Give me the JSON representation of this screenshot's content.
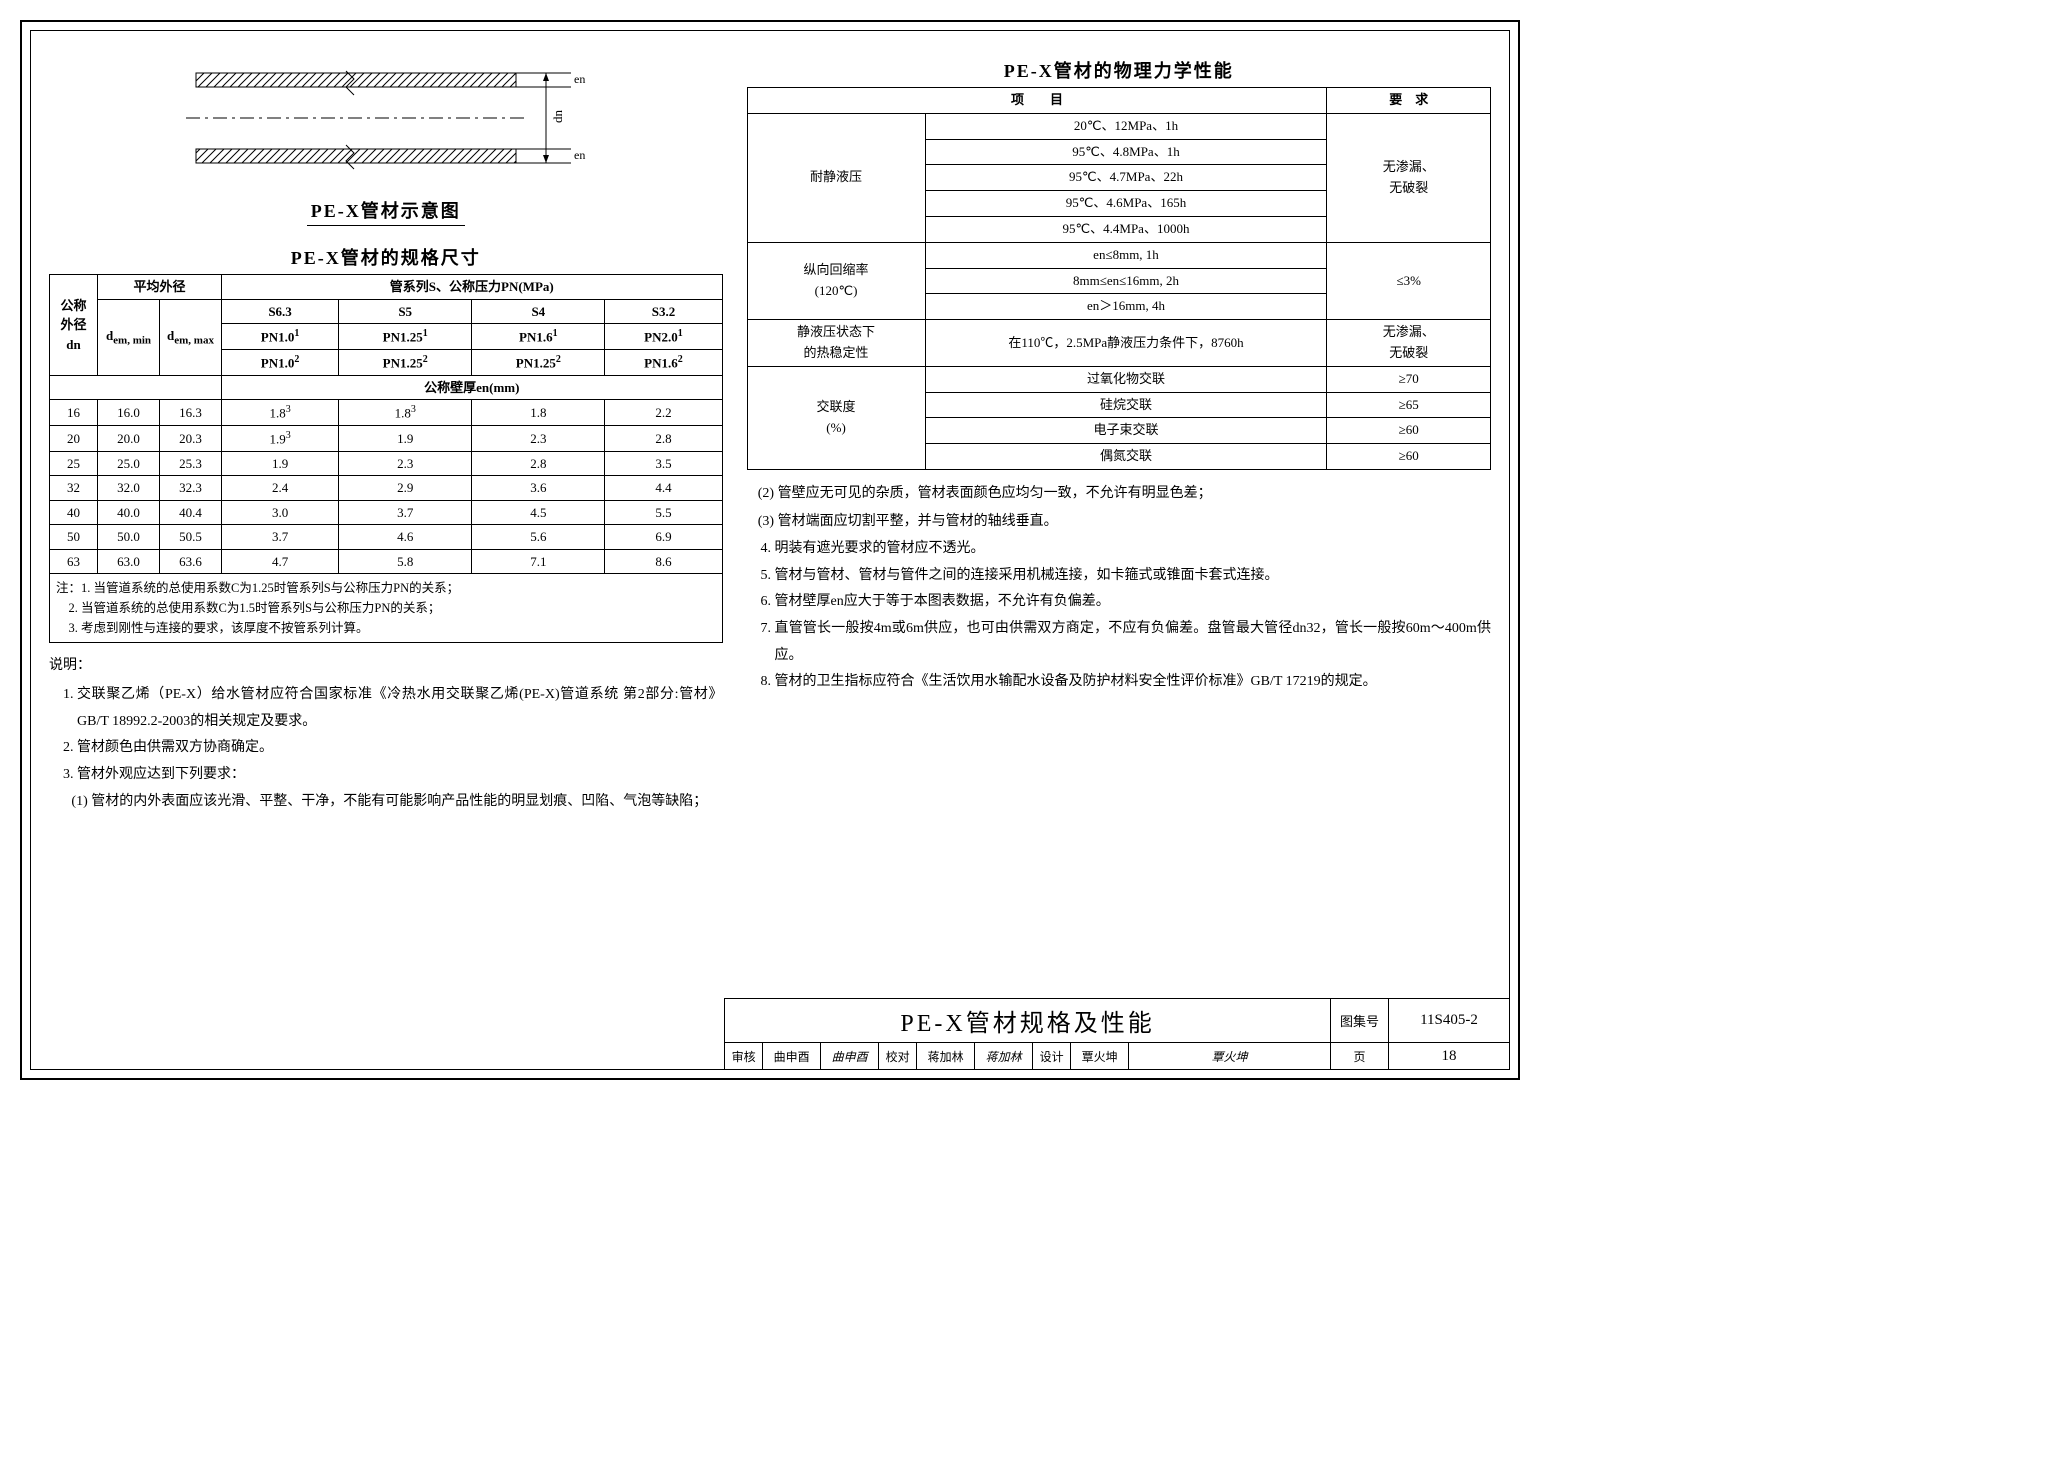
{
  "diagram": {
    "caption": "PE-X管材示意图",
    "dn_label": "dn",
    "en_label": "en"
  },
  "spec_table": {
    "title": "PE-X管材的规格尺寸",
    "headers": {
      "dn": "公称\n外径\ndn",
      "avg_od": "平均外径",
      "dem_min": "dem, min",
      "dem_max": "dem, max",
      "series": "管系列S、公称压力PN(MPa)",
      "s63": "S6.3",
      "s5": "S5",
      "s4": "S4",
      "s32": "S3.2",
      "pn10": "PN1.0",
      "pn125a": "PN1.25",
      "pn16a": "PN1.6",
      "pn20": "PN2.0",
      "pn10b": "PN1.0",
      "pn125b": "PN1.25",
      "pn125c": "PN1.25",
      "pn16b": "PN1.6",
      "en": "公称壁厚en(mm)"
    },
    "rows": [
      {
        "dn": "16",
        "min": "16.0",
        "max": "16.3",
        "a": "1.8",
        "a_sup": "3",
        "b": "1.8",
        "b_sup": "3",
        "c": "1.8",
        "d": "2.2"
      },
      {
        "dn": "20",
        "min": "20.0",
        "max": "20.3",
        "a": "1.9",
        "a_sup": "3",
        "b": "1.9",
        "c": "2.3",
        "d": "2.8"
      },
      {
        "dn": "25",
        "min": "25.0",
        "max": "25.3",
        "a": "1.9",
        "b": "2.3",
        "c": "2.8",
        "d": "3.5"
      },
      {
        "dn": "32",
        "min": "32.0",
        "max": "32.3",
        "a": "2.4",
        "b": "2.9",
        "c": "3.6",
        "d": "4.4"
      },
      {
        "dn": "40",
        "min": "40.0",
        "max": "40.4",
        "a": "3.0",
        "b": "3.7",
        "c": "4.5",
        "d": "5.5"
      },
      {
        "dn": "50",
        "min": "50.0",
        "max": "50.5",
        "a": "3.7",
        "b": "4.6",
        "c": "5.6",
        "d": "6.9"
      },
      {
        "dn": "63",
        "min": "63.0",
        "max": "63.6",
        "a": "4.7",
        "b": "5.8",
        "c": "7.1",
        "d": "8.6"
      }
    ],
    "footnote_label": "注：",
    "footnotes": [
      "1. 当管道系统的总使用系数C为1.25时管系列S与公称压力PN的关系；",
      "2. 当管道系统的总使用系数C为1.5时管系列S与公称压力PN的关系；",
      "3. 考虑到刚性与连接的要求，该厚度不按管系列计算。"
    ]
  },
  "left_notes": {
    "header": "说明：",
    "items": [
      "交联聚乙烯（PE-X）给水管材应符合国家标准《冷热水用交联聚乙烯(PE-X)管道系统 第2部分:管材》GB/T 18992.2-2003的相关规定及要求。",
      "管材颜色由供需双方协商确定。",
      "管材外观应达到下列要求："
    ],
    "sub3": "(1) 管材的内外表面应该光滑、平整、干净，不能有可能影响产品性能的明显划痕、凹陷、气泡等缺陷；"
  },
  "perf_table": {
    "title": "PE-X管材的物理力学性能",
    "h_item": "项　　目",
    "h_req": "要　求",
    "r_hydro": "耐静液压",
    "hydro_rows": [
      "20℃、12MPa、1h",
      "95℃、4.8MPa、1h",
      "95℃、4.7MPa、22h",
      "95℃、4.6MPa、165h",
      "95℃、4.4MPa、1000h"
    ],
    "hydro_req": "无渗漏、\n无破裂",
    "r_shrink": "纵向回缩率\n(120℃)",
    "shrink_rows": [
      "en≤8mm, 1h",
      "8mm≤en≤16mm, 2h",
      "en＞16mm, 4h"
    ],
    "shrink_req": "≤3%",
    "r_thermal": "静液压状态下\n的热稳定性",
    "thermal_cond": "在110℃，2.5MPa静液压力条件下，8760h",
    "thermal_req": "无渗漏、\n无破裂",
    "r_cross": "交联度\n(%)",
    "cross_rows": [
      {
        "name": "过氧化物交联",
        "req": "≥70"
      },
      {
        "name": "硅烷交联",
        "req": "≥65"
      },
      {
        "name": "电子束交联",
        "req": "≥60"
      },
      {
        "name": "偶氮交联",
        "req": "≥60"
      }
    ]
  },
  "right_notes": {
    "pre": [
      "(2) 管壁应无可见的杂质，管材表面颜色应均匀一致，不允许有明显色差；",
      "(3) 管材端面应切割平整，并与管材的轴线垂直。"
    ],
    "items": [
      "明装有遮光要求的管材应不透光。",
      "管材与管材、管材与管件之间的连接采用机械连接，如卡箍式或锥面卡套式连接。",
      "管材壁厚en应大于等于本图表数据，不允许有负偏差。",
      "直管管长一般按4m或6m供应，也可由供需双方商定，不应有负偏差。盘管最大管径dn32，管长一般按60m～400m供应。",
      "管材的卫生指标应符合《生活饮用水输配水设备及防护材料安全性评价标准》GB/T 17219的规定。"
    ]
  },
  "title_block": {
    "main": "PE-X管材规格及性能",
    "tujihao": "图集号",
    "code": "11S405-2",
    "shenhe": "审核",
    "shenhe_name": "曲申酉",
    "shenhe_sig": "曲申酉",
    "jiaodui": "校对",
    "jiaodui_name": "蒋加林",
    "jiaodui_sig": "蒋加林",
    "sheji": "设计",
    "sheji_name": "覃火坤",
    "sheji_sig": "覃火坤",
    "ye": "页",
    "page": "18"
  }
}
